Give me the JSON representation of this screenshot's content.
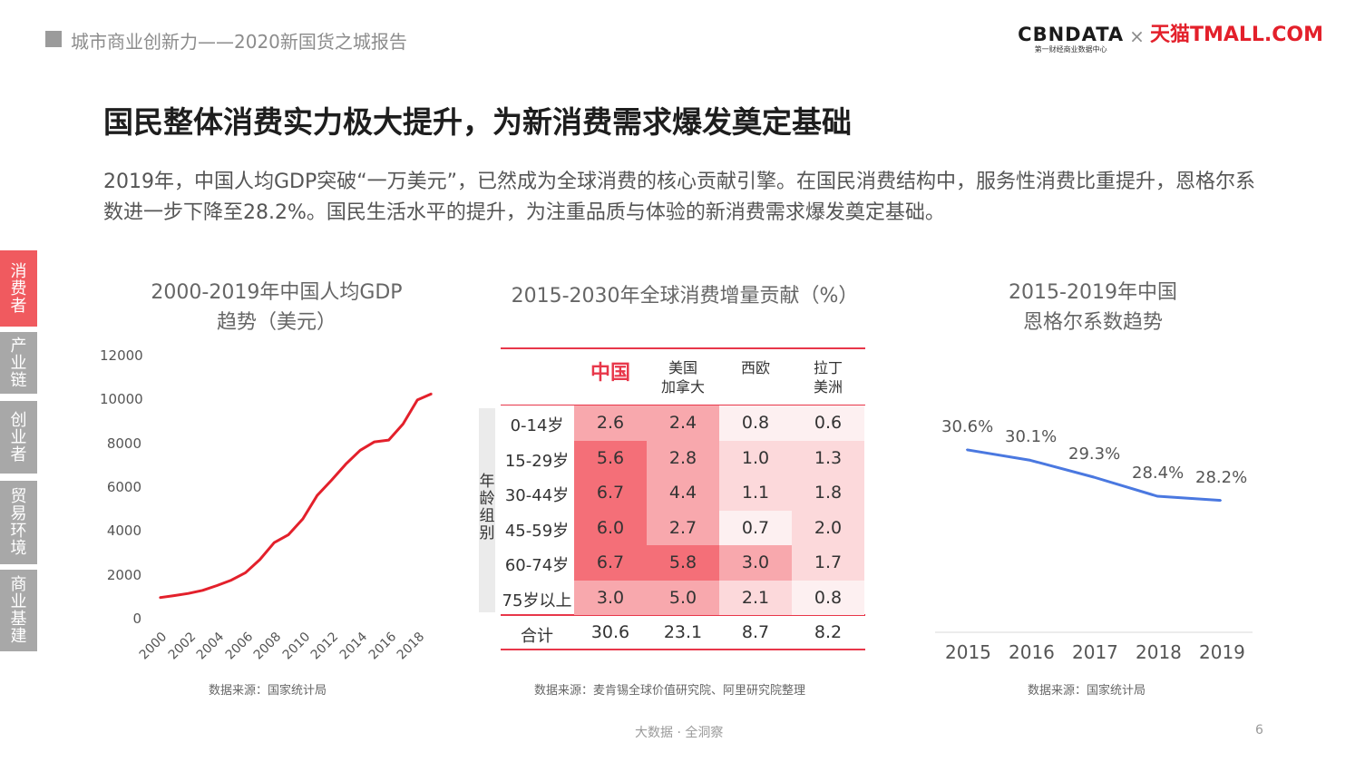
{
  "header": {
    "report_title": "城市商业创新力——2020新国货之城报告"
  },
  "logo": {
    "cbn_main": "CBNDATA",
    "cbn_sub": "第一财经商业数据中心",
    "cross": "×",
    "tmall": "天猫TMALL.COM"
  },
  "slide": {
    "title": "国民整体消费实力极大提升，为新消费需求爆发奠定基础",
    "description": "2019年，中国人均GDP突破“一万美元”，已然成为全球消费的核心贡献引擎。在国民消费结构中，服务性消费比重提升，恩格尔系数进一步下降至28.2%。国民生活水平的提升，为注重品质与体验的新消费需求爆发奠定基础。"
  },
  "sidebar": {
    "items": [
      {
        "label": "消费者",
        "active": true
      },
      {
        "label": "产业链",
        "active": false
      },
      {
        "label": "创业者",
        "active": false
      },
      {
        "label": "贸易环境",
        "active": false
      },
      {
        "label": "商业基建",
        "active": false
      }
    ],
    "active_color": "#f05a5f",
    "inactive_color": "#a8a8a8"
  },
  "chart_data": [
    {
      "type": "line",
      "title": "2000-2019年中国人均GDP",
      "subtitle": "趋势（美元）",
      "x": [
        2000,
        2001,
        2002,
        2003,
        2004,
        2005,
        2006,
        2007,
        2008,
        2009,
        2010,
        2011,
        2012,
        2013,
        2014,
        2015,
        2016,
        2017,
        2018,
        2019
      ],
      "x_tick_labels": [
        "2000",
        "2002",
        "2004",
        "2006",
        "2008",
        "2010",
        "2012",
        "2014",
        "2016",
        "2018"
      ],
      "y_tick_labels": [
        "12000",
        "10000",
        "8000",
        "6000",
        "4000",
        "2000",
        "0"
      ],
      "values": [
        959,
        1053,
        1149,
        1289,
        1509,
        1753,
        2099,
        2694,
        3468,
        3832,
        4550,
        5618,
        6316,
        7050,
        7678,
        8066,
        8147,
        8879,
        9977,
        10262
      ],
      "ylim": [
        0,
        12000
      ],
      "color": "#e3202b",
      "grid": false,
      "source": "数据来源：国家统计局"
    },
    {
      "type": "table",
      "title": "2015-2030年全球消费增量贡献（%）",
      "columns": [
        "中国",
        "美国\n加拿大",
        "西欧",
        "拉丁\n美洲"
      ],
      "row_axis_label": "年龄组别",
      "rows": [
        {
          "label": "0-14岁",
          "values": [
            "2.6",
            "2.4",
            "0.8",
            "0.6"
          ]
        },
        {
          "label": "15-29岁",
          "values": [
            "5.6",
            "2.8",
            "1.0",
            "1.3"
          ]
        },
        {
          "label": "30-44岁",
          "values": [
            "6.7",
            "4.4",
            "1.1",
            "1.8"
          ]
        },
        {
          "label": "45-59岁",
          "values": [
            "6.0",
            "2.7",
            "0.7",
            "2.0"
          ]
        },
        {
          "label": "60-74岁",
          "values": [
            "6.7",
            "5.8",
            "3.0",
            "1.7"
          ]
        },
        {
          "label": "75岁以上",
          "values": [
            "3.0",
            "5.0",
            "2.1",
            "0.8"
          ]
        }
      ],
      "total": {
        "label": "合计",
        "values": [
          "30.6",
          "23.1",
          "8.7",
          "8.2"
        ]
      },
      "heat_colors": {
        "high": "#f46f78",
        "mid": "#f8a8ad",
        "low": "#fcd9db",
        "min": "#fdf0f1"
      },
      "source": "数据来源：麦肯锡全球价值研究院、阿里研究院整理"
    },
    {
      "type": "line",
      "title": "2015-2019年中国",
      "subtitle": "恩格尔系数趋势",
      "x": [
        "2015",
        "2016",
        "2017",
        "2018",
        "2019"
      ],
      "values": [
        30.6,
        30.1,
        29.3,
        28.4,
        28.2
      ],
      "value_labels": [
        "30.6%",
        "30.1%",
        "29.3%",
        "28.4%",
        "28.2%"
      ],
      "color": "#4a78e0",
      "source": "数据来源：国家统计局"
    }
  ],
  "footer": {
    "text": "大数据 · 全洞察",
    "page": "6"
  }
}
